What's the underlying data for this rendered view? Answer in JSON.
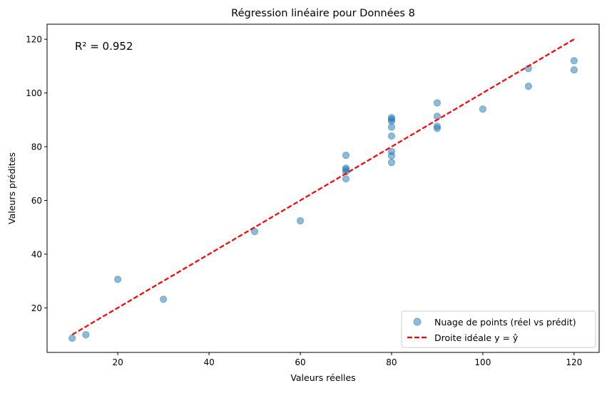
{
  "chart_data": {
    "type": "scatter",
    "title": "Régression linéaire pour Données 8",
    "xlabel": "Valeurs réelles",
    "ylabel": "Valeurs prédites",
    "xlim": [
      4.5,
      125.5
    ],
    "ylim": [
      3.4,
      125.6
    ],
    "xticks": [
      20,
      40,
      60,
      80,
      100,
      120
    ],
    "yticks": [
      20,
      40,
      60,
      80,
      100,
      120
    ],
    "annotation": "R² = 0.952",
    "grid": false,
    "legend_position": "bottom-right",
    "series": [
      {
        "name": "Nuage de points (réel vs prédit)",
        "kind": "scatter",
        "color": "#1f77b4",
        "points": [
          [
            10,
            8.7
          ],
          [
            13,
            10.0
          ],
          [
            20,
            30.6
          ],
          [
            30,
            23.2
          ],
          [
            50,
            48.4
          ],
          [
            60,
            52.4
          ],
          [
            70,
            76.8
          ],
          [
            70,
            72.0
          ],
          [
            70,
            71.5
          ],
          [
            70,
            70.7
          ],
          [
            70,
            68.0
          ],
          [
            80,
            90.8
          ],
          [
            80,
            90.2
          ],
          [
            80,
            89.5
          ],
          [
            80,
            87.3
          ],
          [
            80,
            84.0
          ],
          [
            80,
            78.2
          ],
          [
            80,
            76.6
          ],
          [
            80,
            74.1
          ],
          [
            90,
            96.3
          ],
          [
            90,
            91.3
          ],
          [
            90,
            87.6
          ],
          [
            90,
            86.8
          ],
          [
            100,
            94.0
          ],
          [
            110,
            109.1
          ],
          [
            110,
            102.5
          ],
          [
            120,
            112.0
          ],
          [
            120,
            108.6
          ]
        ]
      },
      {
        "name": "Droite idéale y = ŷ",
        "kind": "line",
        "color": "#ff0000",
        "points": [
          [
            10,
            10
          ],
          [
            120,
            120
          ]
        ]
      }
    ]
  }
}
